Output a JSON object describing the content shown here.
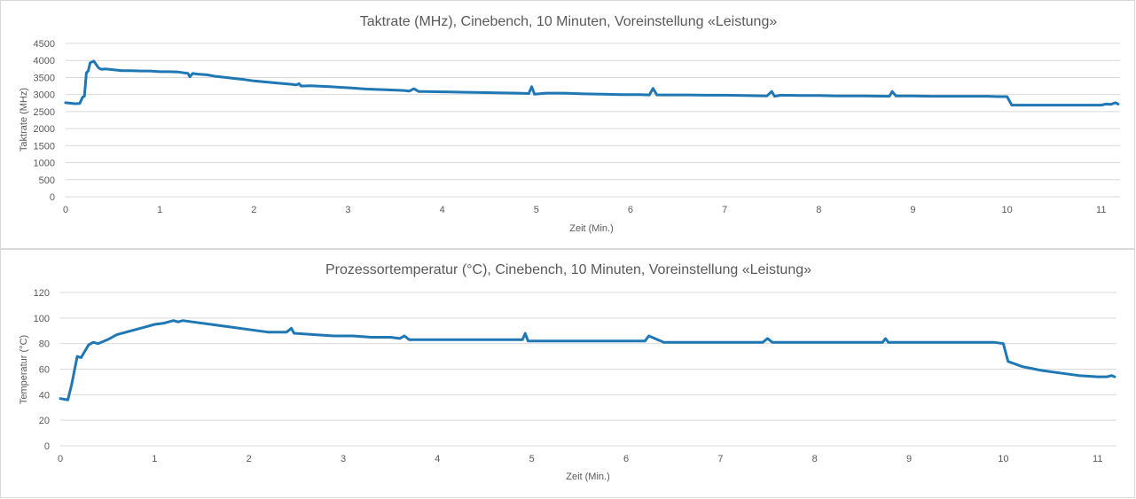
{
  "chart_data": [
    {
      "type": "line",
      "title": "Taktrate (MHz), Cinebench, 10 Minuten, Voreinstellung «Leistung»",
      "xlabel": "Zeit (Min.)",
      "ylabel": "Taktrate (MHz)",
      "xlim": [
        0,
        11.2
      ],
      "ylim": [
        0,
        4500
      ],
      "xticks": [
        "0",
        "1",
        "2",
        "3",
        "4",
        "5",
        "6",
        "7",
        "8",
        "9",
        "10",
        "11"
      ],
      "yticks": [
        "0",
        "500",
        "1000",
        "1500",
        "2000",
        "2500",
        "3000",
        "3500",
        "4000",
        "4500"
      ],
      "grid": true,
      "color": "#1f77b4",
      "series": [
        {
          "x": [
            0,
            0.1,
            0.15,
            0.18,
            0.2,
            0.22,
            0.24,
            0.26,
            0.28,
            0.3,
            0.35,
            0.38,
            0.42,
            0.5,
            0.6,
            0.7,
            0.8,
            0.9,
            1.0,
            1.1,
            1.2,
            1.3,
            1.32,
            1.35,
            1.4,
            1.5,
            1.6,
            1.7,
            1.8,
            1.9,
            2.0,
            2.2,
            2.4,
            2.45,
            2.48,
            2.5,
            2.6,
            2.8,
            3.0,
            3.2,
            3.4,
            3.6,
            3.65,
            3.7,
            3.75,
            3.8,
            4.0,
            4.2,
            4.4,
            4.6,
            4.8,
            4.92,
            4.95,
            4.98,
            5.1,
            5.3,
            5.5,
            5.7,
            5.9,
            6.1,
            6.2,
            6.24,
            6.28,
            6.4,
            6.6,
            6.8,
            7.0,
            7.2,
            7.45,
            7.5,
            7.53,
            7.6,
            7.8,
            8.0,
            8.2,
            8.5,
            8.75,
            8.78,
            8.82,
            9.0,
            9.2,
            9.5,
            9.8,
            9.9,
            10.0,
            10.05,
            10.2,
            10.5,
            10.8,
            11.0,
            11.05,
            11.1,
            11.15,
            11.18
          ],
          "y": [
            2760,
            2730,
            2740,
            2920,
            2950,
            3640,
            3690,
            3930,
            3960,
            3980,
            3780,
            3740,
            3750,
            3730,
            3700,
            3700,
            3690,
            3690,
            3670,
            3670,
            3660,
            3620,
            3520,
            3620,
            3600,
            3580,
            3530,
            3500,
            3470,
            3440,
            3400,
            3350,
            3300,
            3280,
            3320,
            3250,
            3260,
            3230,
            3200,
            3160,
            3140,
            3120,
            3100,
            3170,
            3090,
            3090,
            3080,
            3070,
            3060,
            3050,
            3040,
            3030,
            3230,
            3010,
            3040,
            3040,
            3020,
            3010,
            3000,
            3000,
            2990,
            3180,
            2990,
            2990,
            2990,
            2980,
            2980,
            2970,
            2960,
            3090,
            2950,
            2980,
            2970,
            2970,
            2960,
            2960,
            2950,
            3090,
            2960,
            2960,
            2950,
            2950,
            2950,
            2940,
            2940,
            2690,
            2690,
            2690,
            2690,
            2690,
            2720,
            2710,
            2760,
            2720
          ]
        }
      ]
    },
    {
      "type": "line",
      "title": "Prozessortemperatur (°C), Cinebench, 10 Minuten, Voreinstellung «Leistung»",
      "xlabel": "Zeit (Min.)",
      "ylabel": "Temperatur (°C)",
      "xlim": [
        0,
        11.2
      ],
      "ylim": [
        0,
        120
      ],
      "xticks": [
        "0",
        "1",
        "2",
        "3",
        "4",
        "5",
        "6",
        "7",
        "8",
        "9",
        "10",
        "11"
      ],
      "yticks": [
        "0",
        "20",
        "40",
        "60",
        "80",
        "100",
        "120"
      ],
      "grid": true,
      "color": "#1f77b4",
      "series": [
        {
          "x": [
            0,
            0.08,
            0.12,
            0.18,
            0.22,
            0.3,
            0.35,
            0.4,
            0.5,
            0.6,
            0.7,
            0.8,
            0.9,
            1.0,
            1.1,
            1.2,
            1.25,
            1.3,
            1.4,
            1.6,
            1.8,
            2.0,
            2.2,
            2.4,
            2.45,
            2.48,
            2.5,
            2.7,
            2.9,
            3.1,
            3.3,
            3.5,
            3.6,
            3.65,
            3.7,
            3.8,
            4.0,
            4.3,
            4.6,
            4.9,
            4.93,
            4.96,
            5.2,
            5.5,
            5.8,
            6.1,
            6.2,
            6.24,
            6.4,
            6.8,
            7.2,
            7.45,
            7.5,
            7.55,
            7.8,
            8.2,
            8.5,
            8.72,
            8.75,
            8.78,
            9.0,
            9.5,
            9.9,
            10.0,
            10.05,
            10.2,
            10.4,
            10.6,
            10.8,
            11.0,
            11.1,
            11.15,
            11.18
          ],
          "y": [
            37,
            36,
            48,
            70,
            69,
            79,
            81,
            80,
            83,
            87,
            89,
            91,
            93,
            95,
            96,
            98,
            97,
            98,
            97,
            95,
            93,
            91,
            89,
            89,
            92,
            88,
            88,
            87,
            86,
            86,
            85,
            85,
            84,
            86,
            83,
            83,
            83,
            83,
            83,
            83,
            88,
            82,
            82,
            82,
            82,
            82,
            82,
            86,
            81,
            81,
            81,
            81,
            84,
            81,
            81,
            81,
            81,
            81,
            84,
            81,
            81,
            81,
            81,
            80,
            66,
            62,
            59,
            57,
            55,
            54,
            54,
            55,
            54
          ]
        }
      ]
    }
  ]
}
